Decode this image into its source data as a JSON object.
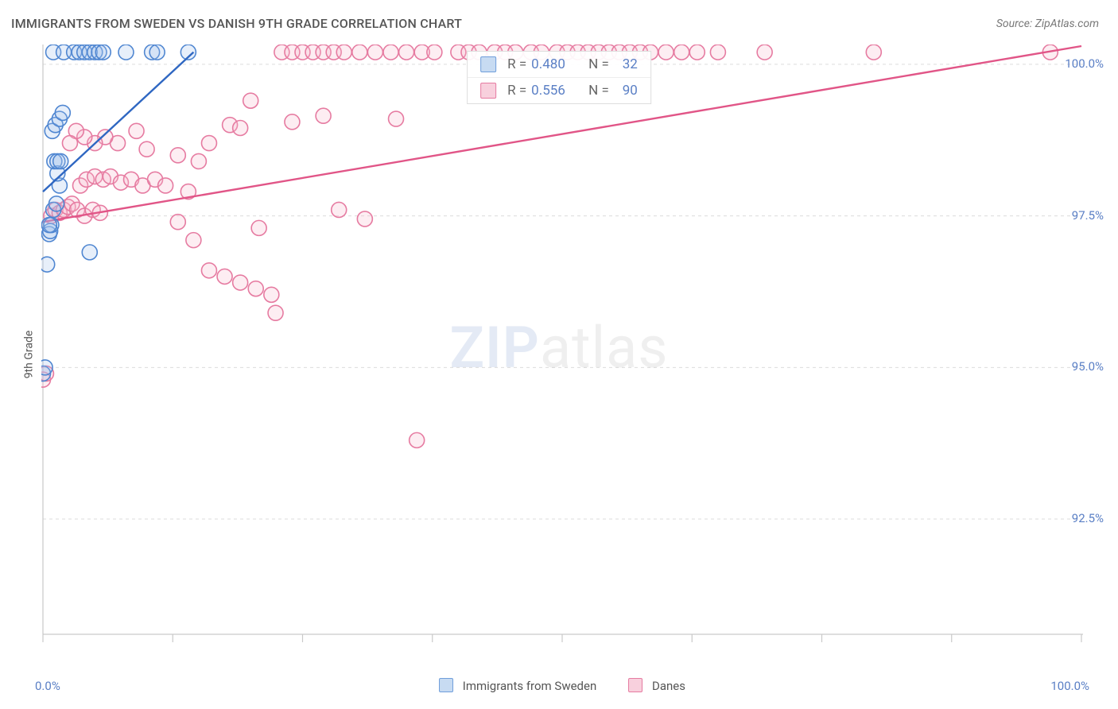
{
  "title": "IMMIGRANTS FROM SWEDEN VS DANISH 9TH GRADE CORRELATION CHART",
  "source": "Source: ZipAtlas.com",
  "watermark": {
    "part1": "ZIP",
    "part2": "atlas"
  },
  "axes": {
    "y_label": "9th Grade",
    "x_min": 0,
    "x_max": 100,
    "y_min": 90.6,
    "y_max": 100.3,
    "y_ticks": [
      92.5,
      95.0,
      97.5,
      100.0
    ],
    "y_tick_labels": [
      "92.5%",
      "95.0%",
      "97.5%",
      "100.0%"
    ],
    "x_tick_labels": {
      "left": "0.0%",
      "right": "100.0%"
    },
    "x_ticks_count": 8,
    "grid_color": "#dcdcdc",
    "axis_color": "#c9c9c9",
    "tick_label_color": "#5a7fc5"
  },
  "legend": {
    "series": [
      {
        "label": "Immigrants from Sweden",
        "r": "0.480",
        "n": "32",
        "swatch_fill": "#c7dbf2",
        "swatch_stroke": "#6f9edb"
      },
      {
        "label": "Danes",
        "r": "0.556",
        "n": "90",
        "swatch_fill": "#f8d0dd",
        "swatch_stroke": "#e67ba1"
      }
    ],
    "box_label_R": "R =",
    "box_label_N": "N ="
  },
  "style": {
    "point_radius": 9.5,
    "point_fill_opacity": 0.25,
    "point_stroke_width": 1.6,
    "line_width": 2.4
  },
  "series": [
    {
      "name": "Immigrants from Sweden",
      "color_stroke": "#4f86d1",
      "color_fill": "#9fc1ea",
      "line_color": "#2f67c2",
      "trend_line": {
        "x1": 0,
        "y1": 97.9,
        "x2": 14.5,
        "y2": 100.2
      },
      "points": [
        [
          0.0,
          94.9
        ],
        [
          0.2,
          95.0
        ],
        [
          0.4,
          96.7
        ],
        [
          0.6,
          97.2
        ],
        [
          0.7,
          97.25
        ],
        [
          0.8,
          97.35
        ],
        [
          0.6,
          97.35
        ],
        [
          1.0,
          97.6
        ],
        [
          1.3,
          97.7
        ],
        [
          1.6,
          98.0
        ],
        [
          1.4,
          98.2
        ],
        [
          1.1,
          98.4
        ],
        [
          1.4,
          98.4
        ],
        [
          1.7,
          98.4
        ],
        [
          0.9,
          98.9
        ],
        [
          1.2,
          99.0
        ],
        [
          1.6,
          99.1
        ],
        [
          1.9,
          99.2
        ],
        [
          1.0,
          100.2
        ],
        [
          2.0,
          100.2
        ],
        [
          3.0,
          100.2
        ],
        [
          3.5,
          100.2
        ],
        [
          4.0,
          100.2
        ],
        [
          4.5,
          100.2
        ],
        [
          5.0,
          100.2
        ],
        [
          5.4,
          100.2
        ],
        [
          5.8,
          100.2
        ],
        [
          8.0,
          100.2
        ],
        [
          10.5,
          100.2
        ],
        [
          11.0,
          100.2
        ],
        [
          14.0,
          100.2
        ],
        [
          4.5,
          96.9
        ]
      ]
    },
    {
      "name": "Danes",
      "color_stroke": "#e67ba1",
      "color_fill": "#f6b9cd",
      "line_color": "#e15587",
      "trend_line": {
        "x1": 0,
        "y1": 97.4,
        "x2": 100,
        "y2": 100.3
      },
      "points": [
        [
          0.0,
          94.8
        ],
        [
          0.3,
          94.9
        ],
        [
          0.8,
          97.5
        ],
        [
          1.2,
          97.6
        ],
        [
          1.6,
          97.55
        ],
        [
          2.0,
          97.6
        ],
        [
          2.4,
          97.65
        ],
        [
          2.8,
          97.7
        ],
        [
          3.3,
          97.6
        ],
        [
          4.0,
          97.5
        ],
        [
          4.8,
          97.6
        ],
        [
          5.5,
          97.55
        ],
        [
          3.6,
          98.0
        ],
        [
          4.2,
          98.1
        ],
        [
          5.0,
          98.15
        ],
        [
          5.8,
          98.1
        ],
        [
          6.5,
          98.15
        ],
        [
          7.5,
          98.05
        ],
        [
          8.5,
          98.1
        ],
        [
          9.6,
          98.0
        ],
        [
          10.8,
          98.1
        ],
        [
          11.8,
          98.0
        ],
        [
          13.0,
          97.4
        ],
        [
          14.5,
          97.1
        ],
        [
          16.0,
          96.6
        ],
        [
          17.5,
          96.5
        ],
        [
          19.0,
          96.4
        ],
        [
          20.5,
          96.3
        ],
        [
          22.0,
          96.2
        ],
        [
          22.4,
          95.9
        ],
        [
          20.8,
          97.3
        ],
        [
          15.0,
          98.4
        ],
        [
          16.0,
          98.7
        ],
        [
          18.0,
          99.0
        ],
        [
          10.0,
          98.6
        ],
        [
          9.0,
          98.9
        ],
        [
          7.2,
          98.7
        ],
        [
          6.0,
          98.8
        ],
        [
          5.0,
          98.7
        ],
        [
          4.0,
          98.8
        ],
        [
          3.2,
          98.9
        ],
        [
          2.6,
          98.7
        ],
        [
          13.0,
          98.5
        ],
        [
          14.0,
          97.9
        ],
        [
          36.0,
          93.8
        ],
        [
          20.0,
          99.4
        ],
        [
          23.0,
          100.2
        ],
        [
          24.0,
          100.2
        ],
        [
          25.0,
          100.2
        ],
        [
          26.0,
          100.2
        ],
        [
          27.0,
          100.2
        ],
        [
          28.0,
          100.2
        ],
        [
          29.0,
          100.2
        ],
        [
          30.5,
          100.2
        ],
        [
          32.0,
          100.2
        ],
        [
          33.5,
          100.2
        ],
        [
          35.0,
          100.2
        ],
        [
          36.5,
          100.2
        ],
        [
          37.7,
          100.2
        ],
        [
          40.0,
          100.2
        ],
        [
          41.0,
          100.2
        ],
        [
          42.0,
          100.2
        ],
        [
          43.5,
          100.2
        ],
        [
          44.5,
          100.2
        ],
        [
          45.5,
          100.2
        ],
        [
          47.0,
          100.2
        ],
        [
          48.0,
          100.2
        ],
        [
          49.5,
          100.2
        ],
        [
          50.5,
          100.2
        ],
        [
          51.5,
          100.2
        ],
        [
          52.5,
          100.2
        ],
        [
          53.5,
          100.2
        ],
        [
          54.5,
          100.2
        ],
        [
          55.5,
          100.2
        ],
        [
          56.5,
          100.2
        ],
        [
          57.5,
          100.2
        ],
        [
          58.5,
          100.2
        ],
        [
          60.0,
          100.2
        ],
        [
          61.5,
          100.2
        ],
        [
          63.0,
          100.2
        ],
        [
          65.0,
          100.2
        ],
        [
          69.5,
          100.2
        ],
        [
          80.0,
          100.2
        ],
        [
          97.0,
          100.2
        ],
        [
          24.0,
          99.05
        ],
        [
          27.0,
          99.15
        ],
        [
          34.0,
          99.1
        ],
        [
          28.5,
          97.6
        ],
        [
          31.0,
          97.45
        ],
        [
          19.0,
          98.95
        ]
      ]
    }
  ]
}
